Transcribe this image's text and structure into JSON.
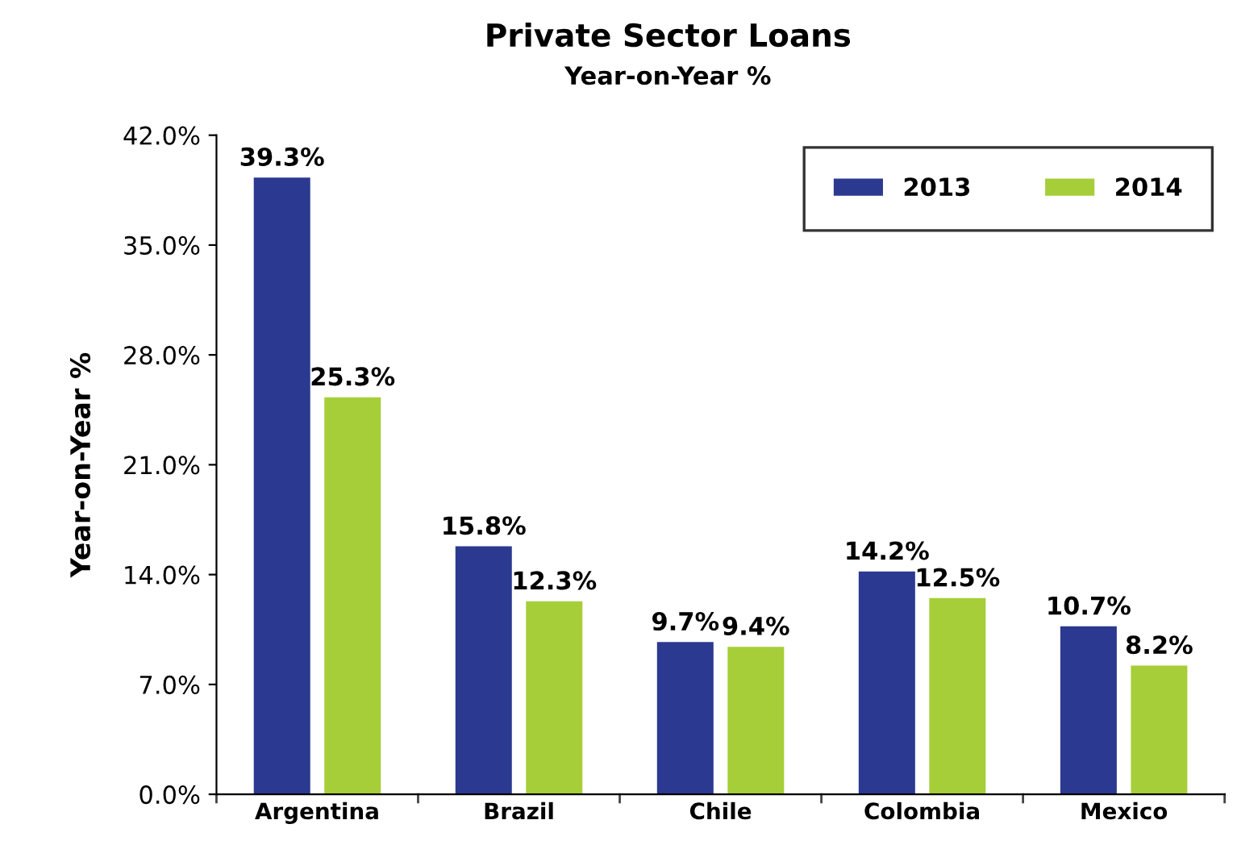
{
  "chart_data": {
    "type": "bar",
    "title": "Private Sector Loans",
    "subtitle": "Year-on-Year %",
    "ylabel": "Year-on-Year %",
    "categories": [
      "Argentina",
      "Brazil",
      "Chile",
      "Colombia",
      "Mexico"
    ],
    "series": [
      {
        "name": "2013",
        "color": "#2b3990",
        "values": [
          39.3,
          15.8,
          9.7,
          14.2,
          10.7
        ],
        "value_labels": [
          "39.3%",
          "15.8%",
          "9.7%",
          "14.2%",
          "10.7%"
        ]
      },
      {
        "name": "2014",
        "color": "#a6ce39",
        "values": [
          25.3,
          12.3,
          9.4,
          12.5,
          8.2
        ],
        "value_labels": [
          "25.3%",
          "12.3%",
          "9.4%",
          "12.5%",
          "8.2%"
        ]
      }
    ],
    "ylim": [
      0,
      42
    ],
    "yticks": [
      {
        "value": 0,
        "label": "0.0%"
      },
      {
        "value": 7,
        "label": "7.0%"
      },
      {
        "value": 14,
        "label": "14.0%"
      },
      {
        "value": 21,
        "label": "21.0%"
      },
      {
        "value": 28,
        "label": "28.0%"
      },
      {
        "value": 35,
        "label": "35.0%"
      },
      {
        "value": 42,
        "label": "42.0%"
      }
    ],
    "legend": "top right",
    "grid": false
  }
}
